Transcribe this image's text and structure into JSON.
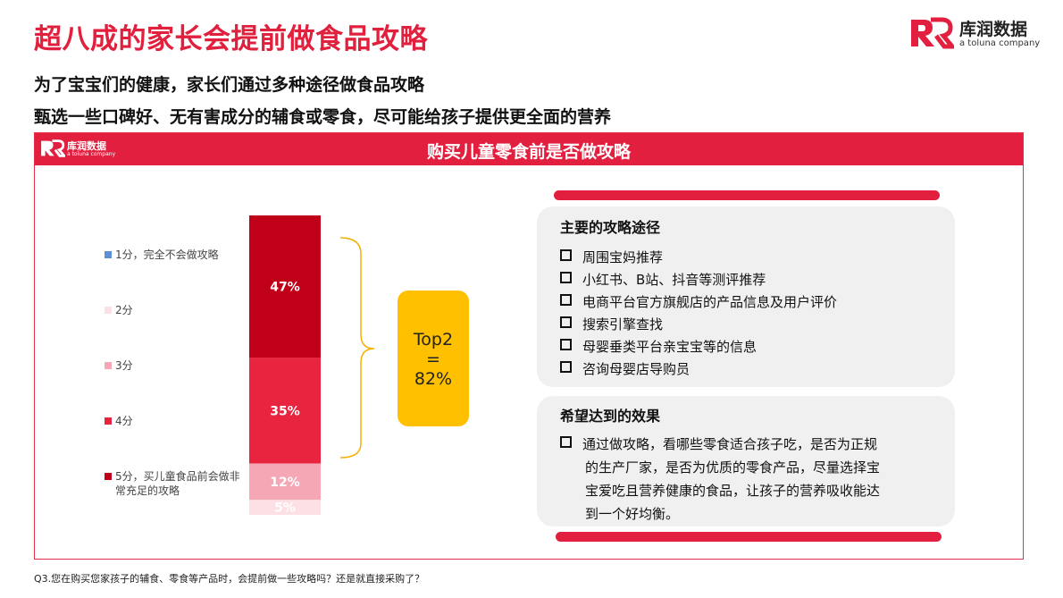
{
  "header": {
    "title": "超八成的家长会提前做食品攻略",
    "subtitle1": "为了宝宝们的健康，家长们通过多种途径做食品攻略",
    "subtitle2": "甄选一些口碑好、无有害成分的辅食或零食，尽可能给孩子提供更全面的营养",
    "logo_text": "库润数据",
    "logo_tagline": "a toluna company"
  },
  "panel": {
    "banner_title": "购买儿童零食前是否做攻略",
    "banner_logo_text": "库润数据",
    "banner_logo_tagline": "a toluna company"
  },
  "chart_data": {
    "type": "bar",
    "stacked": true,
    "title": "购买儿童零食前是否做攻略",
    "categories": [
      ""
    ],
    "series": [
      {
        "name": "1分，完全不会做攻略",
        "values": [
          0
        ],
        "color": "#5b8fd6"
      },
      {
        "name": "2分",
        "values": [
          5
        ],
        "color": "#fde0e5",
        "label": "5%"
      },
      {
        "name": "3分",
        "values": [
          12
        ],
        "color": "#f5a7b6",
        "label": "12%"
      },
      {
        "name": "4分",
        "values": [
          35
        ],
        "color": "#e8243f",
        "label": "35%"
      },
      {
        "name": "5分，买儿童食品前会做非常充足的攻略",
        "values": [
          47
        ],
        "color": "#c00018",
        "label": "47%"
      }
    ],
    "ylim": [
      0,
      99
    ],
    "legend_position": "left",
    "annotation": {
      "line1": "Top2",
      "line2": "=",
      "line3": "82%"
    }
  },
  "methods": {
    "title": "主要的攻略途径",
    "items": [
      "周围宝妈推荐",
      "小红书、B站、抖音等测评推荐",
      "电商平台官方旗舰店的产品信息及用户评价",
      "搜索引擎查找",
      "母婴垂类平台亲宝宝等的信息",
      "咨询母婴店导购员"
    ]
  },
  "effects": {
    "title": "希望达到的效果",
    "lines": [
      "通过做攻略，看哪些零食适合孩子吃，是否为正规",
      "的生产厂家，是否为优质的零食产品，尽量选择宝",
      "宝爱吃且营养健康的食品，让孩子的营养吸收能达",
      "到一个好均衡。"
    ]
  },
  "footnote": "Q3.您在购买您家孩子的辅食、零食等产品时，会提前做一些攻略吗？还是就直接采购了？",
  "colors": {
    "brand_red": "#e21f3f",
    "title_red": "#e0203d",
    "highlight": "#ffc000"
  }
}
